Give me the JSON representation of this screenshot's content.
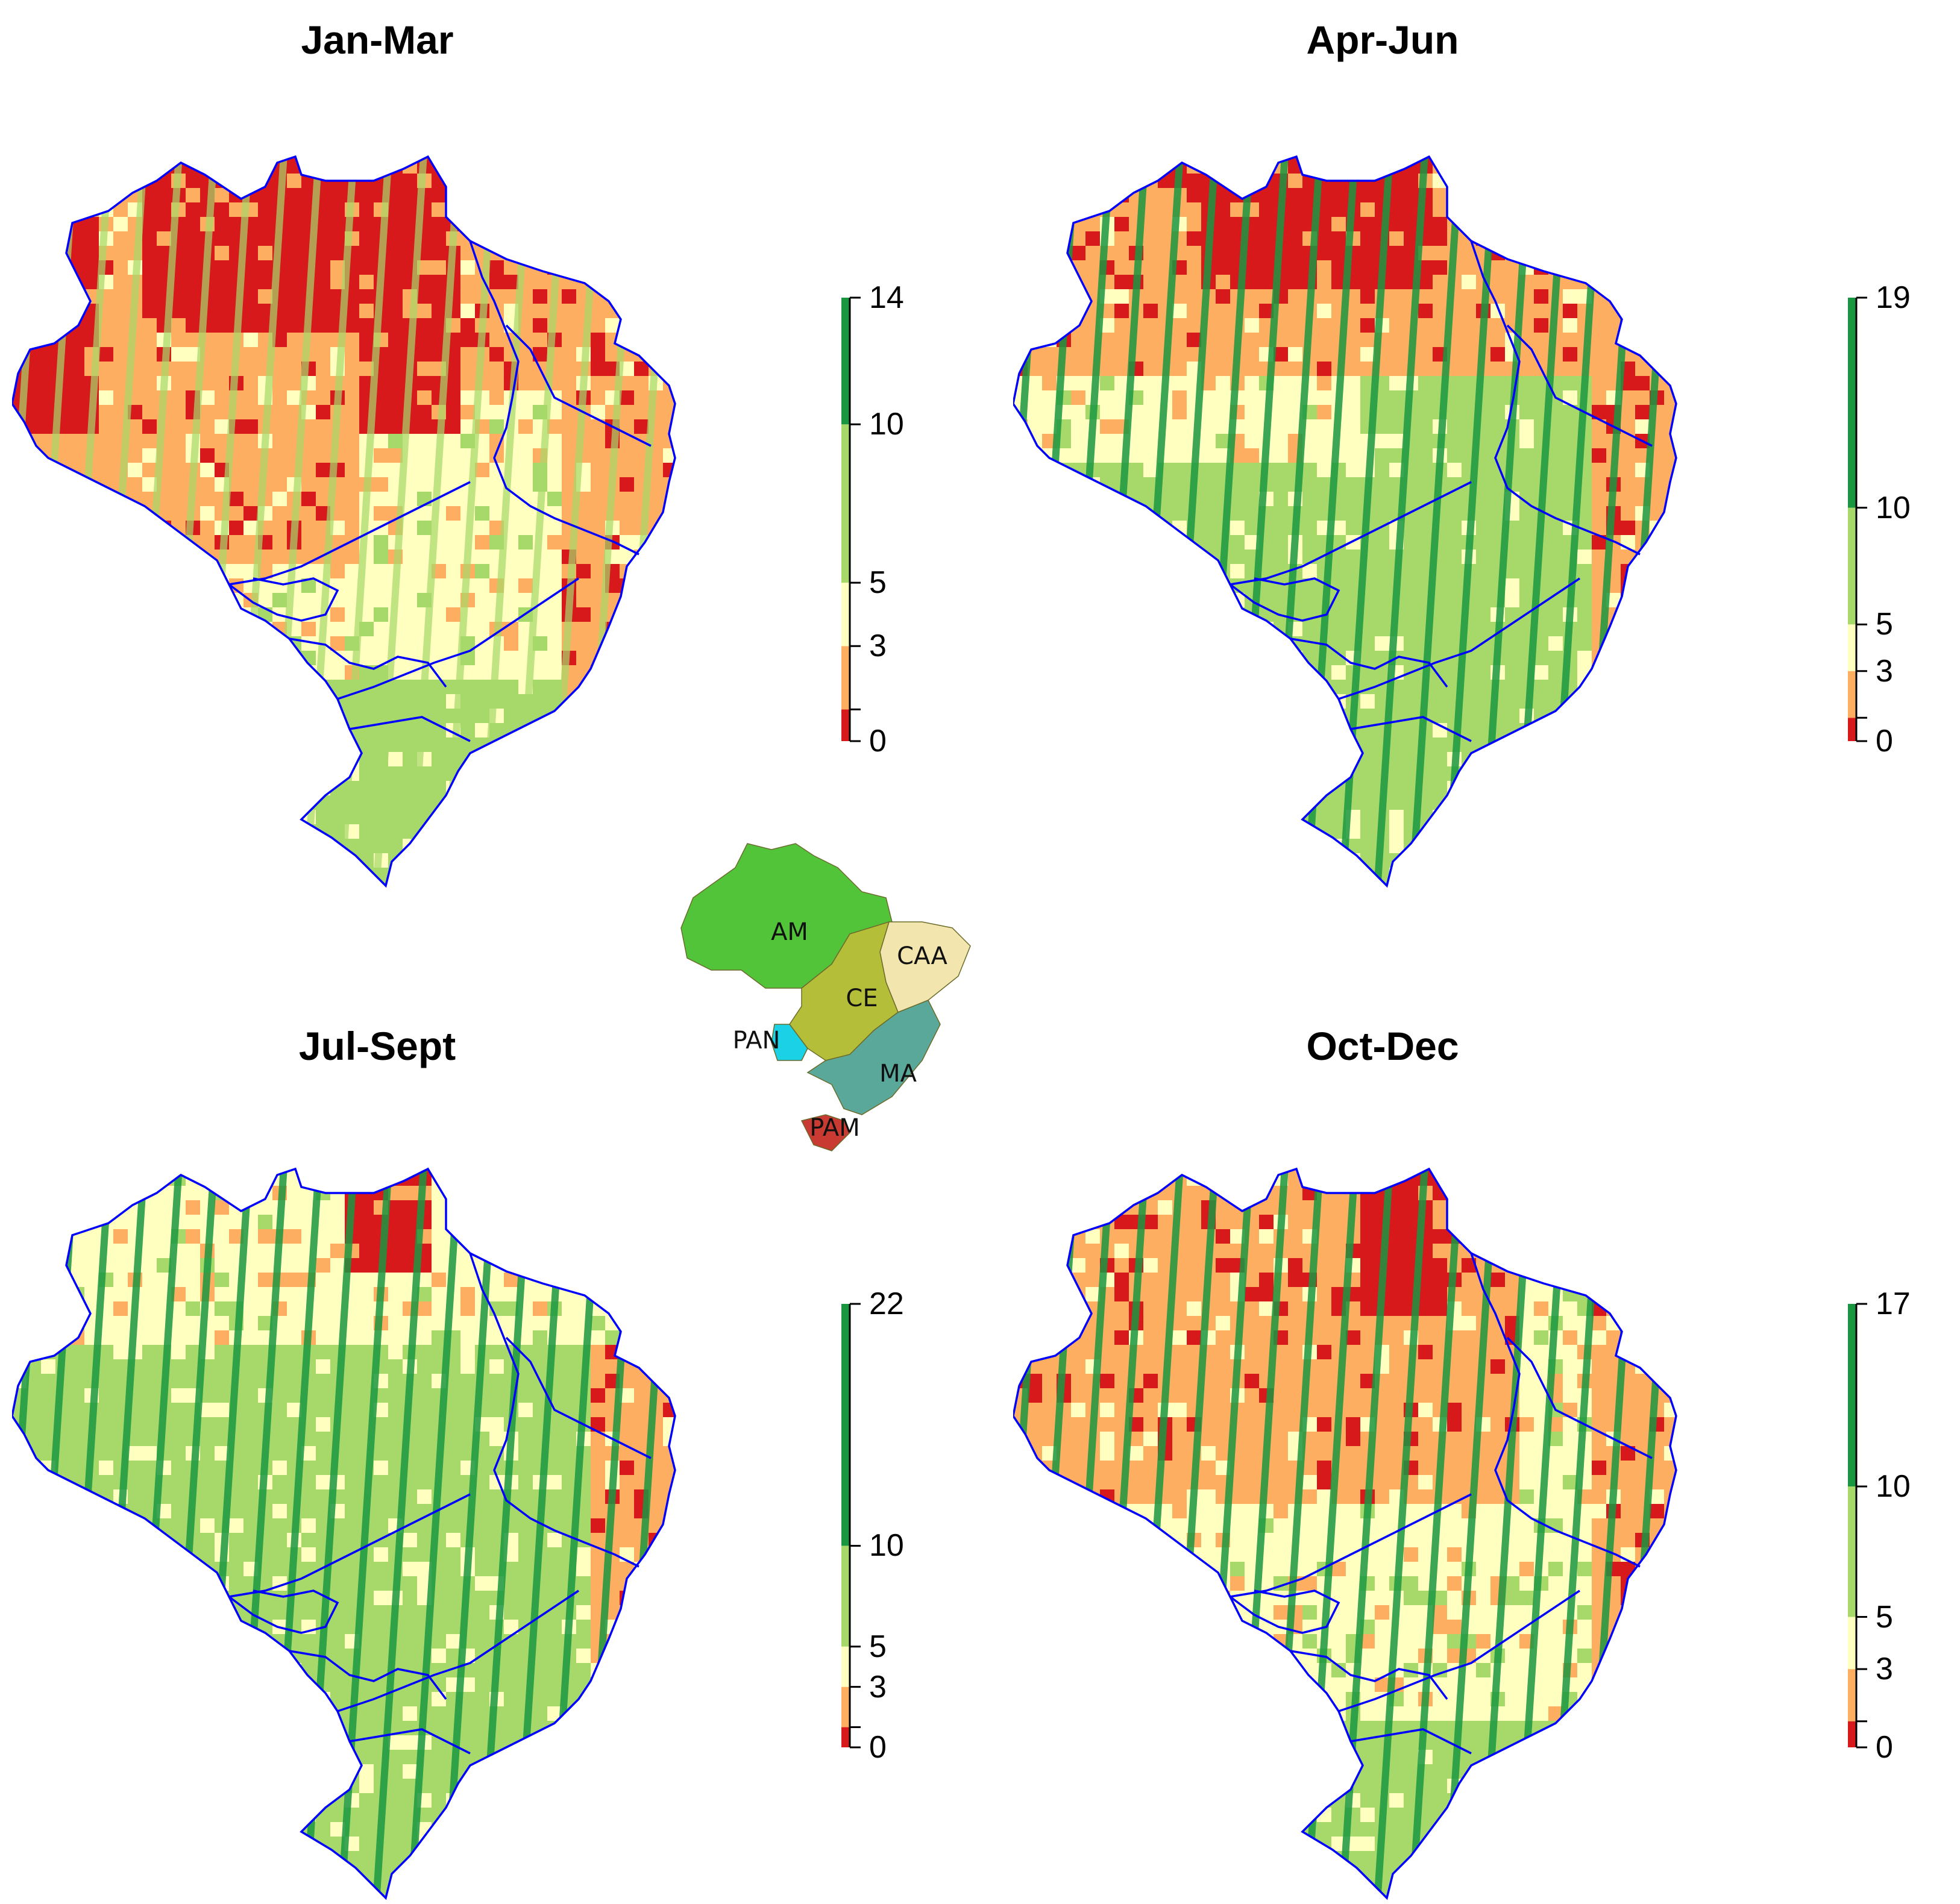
{
  "colors": {
    "scale": [
      "#d7191c",
      "#fdae61",
      "#ffffbf",
      "#a6d96a",
      "#1a9641"
    ],
    "boundary": "#0000ff"
  },
  "panels": [
    {
      "title": "Jan-Mar",
      "legend": {
        "breaks": [
          0,
          1,
          3,
          5,
          10,
          14
        ],
        "labels": [
          "0",
          "3",
          "5",
          "10",
          "14"
        ]
      }
    },
    {
      "title": "Apr-Jun",
      "legend": {
        "breaks": [
          0,
          1,
          3,
          5,
          10,
          19
        ],
        "labels": [
          "0",
          "3",
          "5",
          "10",
          "19"
        ]
      }
    },
    {
      "title": "Jul-Sept",
      "legend": {
        "breaks": [
          0,
          1,
          3,
          5,
          10,
          22
        ],
        "labels": [
          "0",
          "3",
          "5",
          "10",
          "22"
        ]
      }
    },
    {
      "title": "Oct-Dec",
      "legend": {
        "breaks": [
          0,
          1,
          3,
          5,
          10,
          17
        ],
        "labels": [
          "0",
          "3",
          "5",
          "10",
          "17"
        ]
      }
    }
  ],
  "inset": {
    "regions": [
      {
        "label": "AM",
        "color": "#52c43a"
      },
      {
        "label": "CAA",
        "color": "#f2e6ae"
      },
      {
        "label": "CE",
        "color": "#b4be38"
      },
      {
        "label": "PAN",
        "color": "#1ad1e6"
      },
      {
        "label": "MA",
        "color": "#5aa89a"
      },
      {
        "label": "PAM",
        "color": "#c83a32"
      }
    ]
  }
}
